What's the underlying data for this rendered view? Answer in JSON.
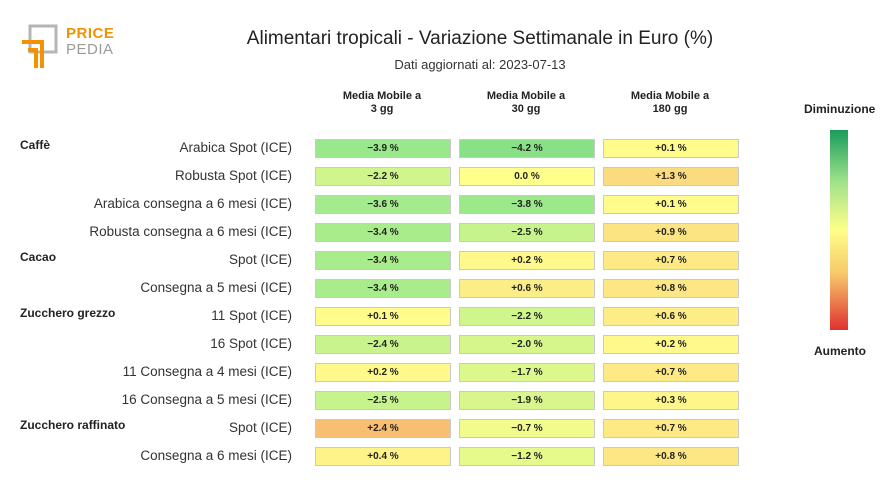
{
  "logo": {
    "line1": "PRICE",
    "line2": "PEDIA"
  },
  "header": {
    "title": "Alimentari tropicali - Variazione Settimanale in Euro (%)",
    "subtitle": "Dati aggiornati al: 2023-07-13"
  },
  "legend": {
    "top": "Diminuzione",
    "bottom": "Aumento"
  },
  "colors": {
    "strong_decrease": "#1a9c5a",
    "neutral": "#ffff8a",
    "strong_increase": "#e03030"
  },
  "chart_data": {
    "type": "table",
    "title": "Alimentari tropicali - Variazione Settimanale in Euro (%)",
    "columns": [
      "Media Mobile a\n3 gg",
      "Media Mobile a\n30 gg",
      "Media Mobile a\n180 gg"
    ],
    "groups": [
      {
        "name": "Caffè",
        "rows": [
          {
            "label": "Arabica Spot (ICE)",
            "values": [
              "−3.9 %",
              "−4.2 %",
              "+0.1 %"
            ],
            "nums": [
              -3.9,
              -4.2,
              0.1
            ]
          },
          {
            "label": "Robusta Spot (ICE)",
            "values": [
              "−2.2 %",
              "0.0 %",
              "+1.3 %"
            ],
            "nums": [
              -2.2,
              0.0,
              1.3
            ]
          },
          {
            "label": "Arabica consegna a 6 mesi (ICE)",
            "values": [
              "−3.6 %",
              "−3.8 %",
              "+0.1 %"
            ],
            "nums": [
              -3.6,
              -3.8,
              0.1
            ]
          },
          {
            "label": "Robusta consegna a 6 mesi (ICE)",
            "values": [
              "−3.4 %",
              "−2.5 %",
              "+0.9 %"
            ],
            "nums": [
              -3.4,
              -2.5,
              0.9
            ]
          }
        ]
      },
      {
        "name": "Cacao",
        "rows": [
          {
            "label": "Spot (ICE)",
            "values": [
              "−3.4 %",
              "+0.2 %",
              "+0.7 %"
            ],
            "nums": [
              -3.4,
              0.2,
              0.7
            ]
          },
          {
            "label": "Consegna a 5 mesi (ICE)",
            "values": [
              "−3.4 %",
              "+0.6 %",
              "+0.8 %"
            ],
            "nums": [
              -3.4,
              0.6,
              0.8
            ]
          }
        ]
      },
      {
        "name": "Zucchero grezzo",
        "rows": [
          {
            "label": "11 Spot (ICE)",
            "values": [
              "+0.1 %",
              "−2.2 %",
              "+0.6 %"
            ],
            "nums": [
              0.1,
              -2.2,
              0.6
            ]
          },
          {
            "label": "16 Spot (ICE)",
            "values": [
              "−2.4 %",
              "−2.0 %",
              "+0.2 %"
            ],
            "nums": [
              -2.4,
              -2.0,
              0.2
            ]
          },
          {
            "label": "11 Consegna a 4 mesi (ICE)",
            "values": [
              "+0.2 %",
              "−1.7 %",
              "+0.7 %"
            ],
            "nums": [
              0.2,
              -1.7,
              0.7
            ]
          },
          {
            "label": "16 Consegna a 5 mesi (ICE)",
            "values": [
              "−2.5 %",
              "−1.9 %",
              "+0.3 %"
            ],
            "nums": [
              -2.5,
              -1.9,
              0.3
            ]
          }
        ]
      },
      {
        "name": "Zucchero raffinato",
        "rows": [
          {
            "label": "Spot (ICE)",
            "values": [
              "+2.4 %",
              "−0.7 %",
              "+0.7 %"
            ],
            "nums": [
              2.4,
              -0.7,
              0.7
            ]
          },
          {
            "label": "Consegna a 6 mesi (ICE)",
            "values": [
              "+0.4 %",
              "−1.2 %",
              "+0.8 %"
            ],
            "nums": [
              0.4,
              -1.2,
              0.8
            ]
          }
        ]
      }
    ]
  }
}
